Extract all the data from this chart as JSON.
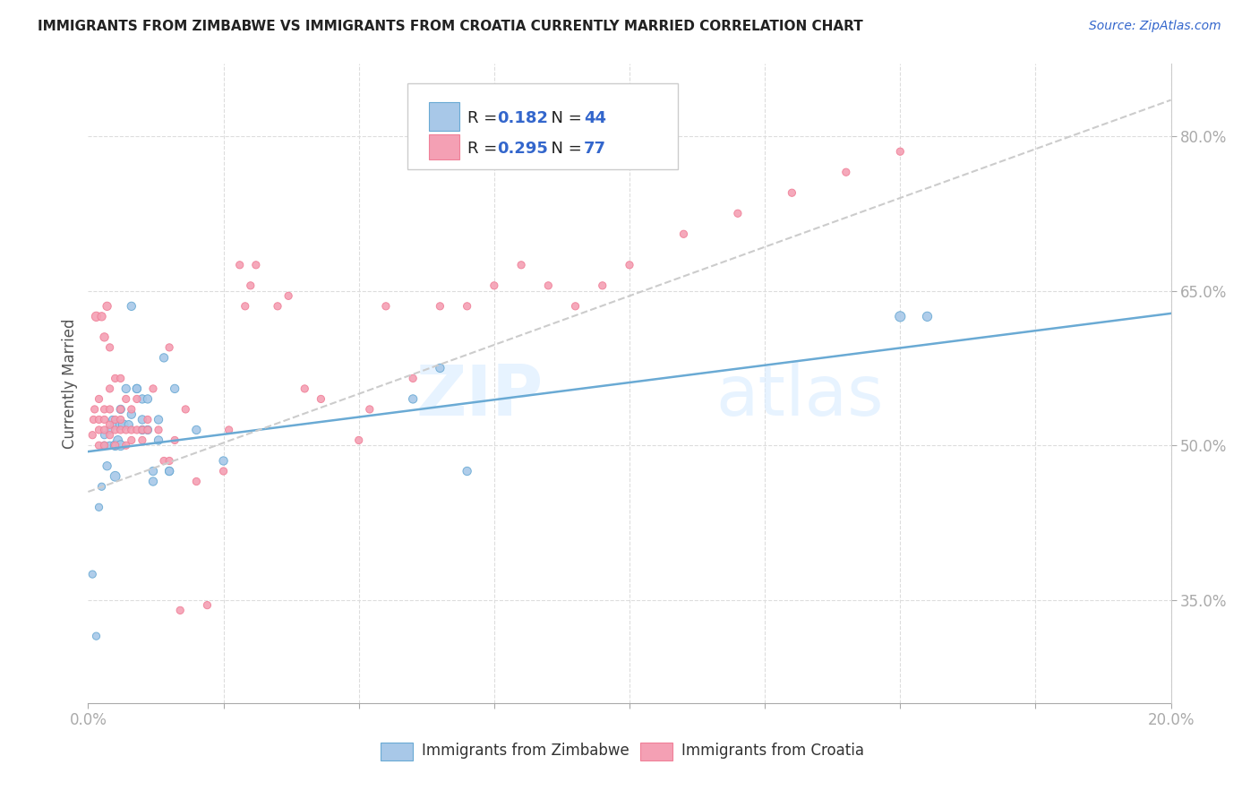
{
  "title": "IMMIGRANTS FROM ZIMBABWE VS IMMIGRANTS FROM CROATIA CURRENTLY MARRIED CORRELATION CHART",
  "source": "Source: ZipAtlas.com",
  "ylabel": "Currently Married",
  "xlim": [
    0.0,
    0.2
  ],
  "ylim": [
    0.25,
    0.87
  ],
  "xtick_positions": [
    0.0,
    0.025,
    0.05,
    0.075,
    0.1,
    0.125,
    0.15,
    0.175,
    0.2
  ],
  "ytick_vals_right": [
    0.8,
    0.65,
    0.5,
    0.35
  ],
  "ytick_labels_right": [
    "80.0%",
    "65.0%",
    "50.0%",
    "35.0%"
  ],
  "color_zimbabwe": "#a8c8e8",
  "color_croatia": "#f4a0b4",
  "edge_zimbabwe": "#6aaad4",
  "edge_croatia": "#f08098",
  "line_color_zimbabwe": "#6aaad4",
  "line_color_croatia": "#f4a0b4",
  "zim_trend_x": [
    0.0,
    0.2
  ],
  "zim_trend_y": [
    0.494,
    0.628
  ],
  "cro_trend_x": [
    0.0,
    0.2
  ],
  "cro_trend_y": [
    0.455,
    0.835
  ],
  "zimbabwe_x": [
    0.0008,
    0.0015,
    0.002,
    0.0025,
    0.003,
    0.003,
    0.0035,
    0.004,
    0.004,
    0.0045,
    0.005,
    0.005,
    0.005,
    0.0055,
    0.006,
    0.006,
    0.006,
    0.0065,
    0.007,
    0.0075,
    0.008,
    0.008,
    0.009,
    0.009,
    0.01,
    0.01,
    0.01,
    0.011,
    0.011,
    0.012,
    0.012,
    0.013,
    0.013,
    0.014,
    0.015,
    0.015,
    0.016,
    0.02,
    0.025,
    0.06,
    0.065,
    0.07,
    0.15,
    0.155
  ],
  "zimbabwe_y": [
    0.375,
    0.315,
    0.44,
    0.46,
    0.5,
    0.51,
    0.48,
    0.5,
    0.515,
    0.525,
    0.47,
    0.5,
    0.52,
    0.505,
    0.5,
    0.52,
    0.535,
    0.52,
    0.555,
    0.52,
    0.53,
    0.635,
    0.555,
    0.555,
    0.515,
    0.525,
    0.545,
    0.515,
    0.545,
    0.465,
    0.475,
    0.505,
    0.525,
    0.585,
    0.475,
    0.475,
    0.555,
    0.515,
    0.485,
    0.545,
    0.575,
    0.475,
    0.625,
    0.625
  ],
  "zimbabwe_sizes": [
    35,
    35,
    35,
    35,
    35,
    35,
    45,
    35,
    35,
    35,
    60,
    60,
    50,
    50,
    60,
    60,
    45,
    60,
    45,
    45,
    45,
    45,
    45,
    45,
    45,
    45,
    45,
    45,
    45,
    45,
    45,
    45,
    45,
    45,
    45,
    45,
    45,
    45,
    45,
    45,
    45,
    45,
    65,
    55
  ],
  "croatia_x": [
    0.0008,
    0.001,
    0.0012,
    0.0015,
    0.002,
    0.002,
    0.002,
    0.002,
    0.0025,
    0.003,
    0.003,
    0.003,
    0.003,
    0.003,
    0.0035,
    0.004,
    0.004,
    0.004,
    0.004,
    0.004,
    0.005,
    0.005,
    0.005,
    0.005,
    0.006,
    0.006,
    0.006,
    0.006,
    0.007,
    0.007,
    0.007,
    0.008,
    0.008,
    0.008,
    0.009,
    0.009,
    0.01,
    0.01,
    0.011,
    0.011,
    0.012,
    0.013,
    0.014,
    0.015,
    0.015,
    0.016,
    0.017,
    0.018,
    0.02,
    0.022,
    0.025,
    0.026,
    0.028,
    0.029,
    0.03,
    0.031,
    0.035,
    0.037,
    0.04,
    0.043,
    0.05,
    0.052,
    0.055,
    0.06,
    0.065,
    0.07,
    0.075,
    0.08,
    0.085,
    0.09,
    0.095,
    0.1,
    0.11,
    0.12,
    0.13,
    0.14,
    0.15
  ],
  "croatia_y": [
    0.51,
    0.525,
    0.535,
    0.625,
    0.5,
    0.515,
    0.525,
    0.545,
    0.625,
    0.5,
    0.515,
    0.525,
    0.535,
    0.605,
    0.635,
    0.51,
    0.52,
    0.535,
    0.555,
    0.595,
    0.5,
    0.515,
    0.525,
    0.565,
    0.515,
    0.525,
    0.535,
    0.565,
    0.5,
    0.515,
    0.545,
    0.505,
    0.515,
    0.535,
    0.515,
    0.545,
    0.505,
    0.515,
    0.515,
    0.525,
    0.555,
    0.515,
    0.485,
    0.485,
    0.595,
    0.505,
    0.34,
    0.535,
    0.465,
    0.345,
    0.475,
    0.515,
    0.675,
    0.635,
    0.655,
    0.675,
    0.635,
    0.645,
    0.555,
    0.545,
    0.505,
    0.535,
    0.635,
    0.565,
    0.635,
    0.635,
    0.655,
    0.675,
    0.655,
    0.635,
    0.655,
    0.675,
    0.705,
    0.725,
    0.745,
    0.765,
    0.785
  ],
  "croatia_sizes": [
    35,
    35,
    35,
    55,
    35,
    35,
    35,
    35,
    45,
    35,
    35,
    35,
    35,
    45,
    45,
    35,
    35,
    35,
    35,
    35,
    35,
    35,
    35,
    35,
    35,
    35,
    35,
    35,
    35,
    35,
    35,
    35,
    35,
    35,
    35,
    35,
    35,
    35,
    35,
    35,
    35,
    35,
    35,
    35,
    35,
    35,
    35,
    35,
    35,
    35,
    35,
    35,
    35,
    35,
    35,
    35,
    35,
    35,
    35,
    35,
    35,
    35,
    35,
    35,
    35,
    35,
    35,
    35,
    35,
    35,
    35,
    35,
    35,
    35,
    35,
    35,
    35
  ]
}
